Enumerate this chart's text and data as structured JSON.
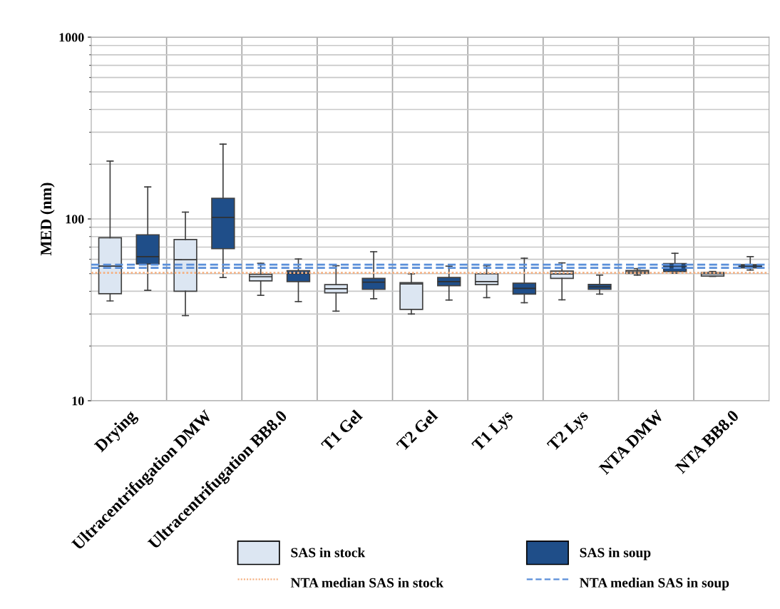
{
  "chart_data": {
    "type": "box",
    "ylabel": "MED (nm)",
    "categories": [
      "Drying",
      "Ultracentrifugation DMW",
      "Ultracentrifugation BB8.0",
      "T1 Gel",
      "T2 Gel",
      "T1 Lys",
      "T2 Lys",
      "NTA DMW",
      "NTA BB8.0"
    ],
    "series": [
      {
        "name": "SAS in stock",
        "color": "#dce6f2",
        "boxes": [
          {
            "low": 35.4,
            "q1": 38.8,
            "median": 55,
            "q3": 78.8,
            "high": 208
          },
          {
            "low": 29.4,
            "q1": 40,
            "median": 59.7,
            "q3": 77,
            "high": 109
          },
          {
            "low": 38,
            "q1": 45.6,
            "median": 48.1,
            "q3": 49.6,
            "high": 57
          },
          {
            "low": 31.1,
            "q1": 39.2,
            "median": 41.3,
            "q3": 43.5,
            "high": 55.3
          },
          {
            "low": 30,
            "q1": 31.8,
            "median": 43.9,
            "q3": 44.6,
            "high": 49.9
          },
          {
            "low": 36.9,
            "q1": 43.5,
            "median": 45.2,
            "q3": 49.9,
            "high": 55.3
          },
          {
            "low": 35.9,
            "q1": 47.1,
            "median": 49.8,
            "q3": 51.7,
            "high": 57.3
          },
          {
            "low": 49.1,
            "q1": 50.2,
            "median": 51.1,
            "q3": 52,
            "high": 53.3
          },
          {
            "low": 48.3,
            "q1": 48.5,
            "median": 49.9,
            "q3": 50.8,
            "high": 51.4
          }
        ]
      },
      {
        "name": "SAS in soup",
        "color": "#1f4e89",
        "boxes": [
          {
            "low": 40.5,
            "q1": 56.5,
            "median": 62,
            "q3": 81.8,
            "high": 150
          },
          {
            "low": 47.6,
            "q1": 68.6,
            "median": 102,
            "q3": 130,
            "high": 258
          },
          {
            "low": 35.1,
            "q1": 45.2,
            "median": 50.2,
            "q3": 51.9,
            "high": 60.2
          },
          {
            "low": 36.4,
            "q1": 41,
            "median": 44.9,
            "q3": 47.1,
            "high": 66
          },
          {
            "low": 35.8,
            "q1": 42.9,
            "median": 45.2,
            "q3": 47.6,
            "high": 55
          },
          {
            "low": 34.6,
            "q1": 38.6,
            "median": 41.5,
            "q3": 44.3,
            "high": 60.8
          },
          {
            "low": 38.6,
            "q1": 41,
            "median": 42.3,
            "q3": 43.6,
            "high": 49.1
          },
          {
            "low": 50.3,
            "q1": 51.3,
            "median": 54.5,
            "q3": 56.8,
            "high": 64.7
          },
          {
            "low": 52.4,
            "q1": 53.8,
            "median": 55,
            "q3": 56,
            "high": 62
          }
        ]
      }
    ],
    "ref_lines": [
      {
        "axis": "y",
        "value": 50.5,
        "label": "NTA median SAS in stock",
        "color": "#f4b183",
        "line_style": "dotted"
      },
      {
        "axis": "y",
        "value": 56,
        "label": "NTA median SAS in soup",
        "color": "#5b8fd9",
        "line_style": "dashed"
      },
      {
        "axis": "y",
        "value": 53.8,
        "label": null,
        "color": "#5b8fd9",
        "line_style": "dashed"
      }
    ],
    "log": "y",
    "ylim": [
      10,
      1000
    ],
    "yticks": [
      10,
      100,
      1000
    ],
    "grid": true,
    "legend": "bottom"
  }
}
